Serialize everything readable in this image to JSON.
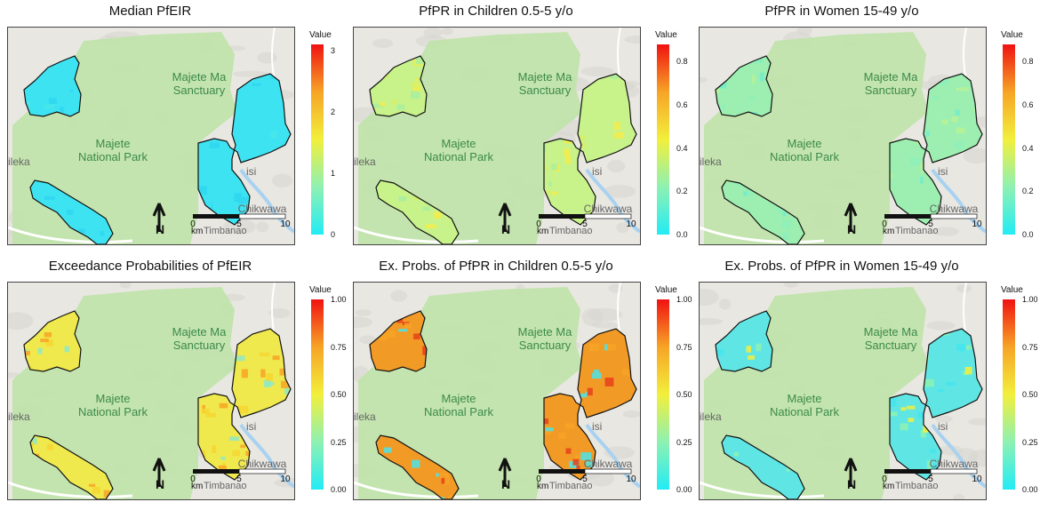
{
  "place_labels": {
    "sanctuary_1": "Majete Ma",
    "sanctuary_2": "Sanctuary",
    "park_1": "Majete",
    "park_2": "National Park",
    "west_town": "ileka",
    "east_town": "isi",
    "district": "Chikwawa",
    "village": "Timbanao"
  },
  "scalebar": {
    "ticks": [
      "0",
      "5",
      "10"
    ],
    "unit": "km"
  },
  "north_arrow": "N",
  "colors": {
    "low": "#22ecf5",
    "mid": "#f2ef3c",
    "high": "#f01212",
    "park": "#bfe3a8",
    "terrain": "#e9e7e2"
  },
  "panels": [
    {
      "title": "Median PfEIR",
      "legend_title": "Value",
      "legend_ticks": [
        "0",
        "1",
        "2",
        "3"
      ],
      "legend_max": 3.1,
      "fill": "#3ee3f2",
      "palette": [
        "#3ee3f2",
        "#48e8ea",
        "#2fd7f0"
      ]
    },
    {
      "title": "PfPR in Children 0.5-5 y/o",
      "legend_title": "Value",
      "legend_ticks": [
        "0.0",
        "0.2",
        "0.4",
        "0.6",
        "0.8"
      ],
      "legend_max": 0.88,
      "fill": "#c8f28a",
      "palette": [
        "#d6f06a",
        "#f3ed4a",
        "#a9efa0"
      ]
    },
    {
      "title": "PfPR in Women 15-49 y/o",
      "legend_title": "Value",
      "legend_ticks": [
        "0.0",
        "0.2",
        "0.4",
        "0.6",
        "0.8"
      ],
      "legend_max": 0.88,
      "fill": "#9cefb0",
      "palette": [
        "#8ff0b8",
        "#b8f296",
        "#73eccc"
      ]
    },
    {
      "title": "Exceedance Probabilities of PfEIR",
      "legend_title": "Value",
      "legend_ticks": [
        "0.00",
        "0.25",
        "0.50",
        "0.75",
        "1.00"
      ],
      "legend_max": 1.0,
      "fill": "#f0e94e",
      "palette": [
        "#f6d630",
        "#f7a426",
        "#8fe9c3"
      ]
    },
    {
      "title": "Ex. Probs. of PfPR in Children 0.5-5 y/o",
      "legend_title": "Value",
      "legend_ticks": [
        "0.00",
        "0.25",
        "0.50",
        "0.75",
        "1.00"
      ],
      "legend_max": 1.0,
      "fill": "#f29a26",
      "palette": [
        "#e8401a",
        "#f7a426",
        "#4be4ea"
      ]
    },
    {
      "title": "Ex. Probs. of PfPR in Women 15-49 y/o",
      "legend_title": "Value",
      "legend_ticks": [
        "0.00",
        "0.25",
        "0.50",
        "0.75",
        "1.00"
      ],
      "legend_max": 1.0,
      "fill": "#5fe6e4",
      "palette": [
        "#45e4ee",
        "#8ef1b2",
        "#f2ef3c"
      ]
    }
  ]
}
